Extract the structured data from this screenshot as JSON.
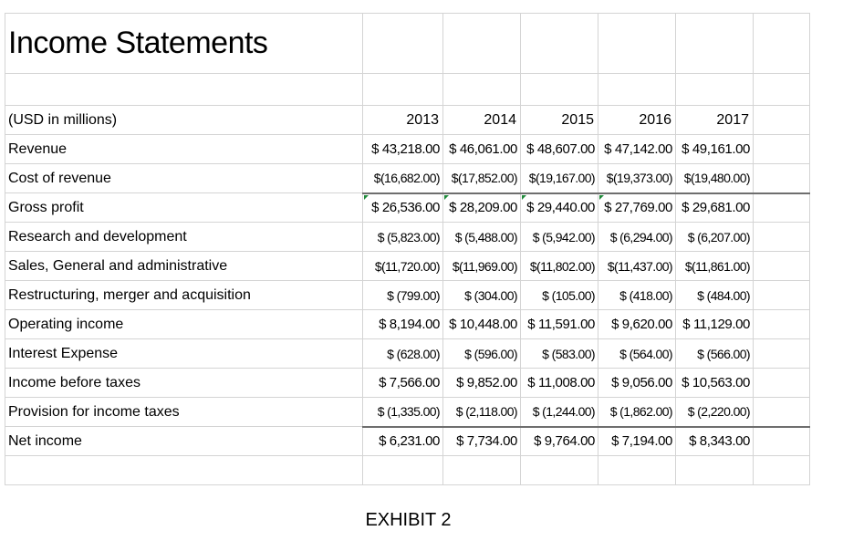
{
  "title": "Income Statements",
  "unit_label": "(USD in millions)",
  "years": [
    "2013",
    "2014",
    "2015",
    "2016",
    "2017"
  ],
  "rows": [
    {
      "label": "Revenue",
      "values": [
        "$ 43,218.00",
        "$ 46,061.00",
        "$ 48,607.00",
        "$ 47,142.00",
        "$ 49,161.00"
      ]
    },
    {
      "label": "Cost of revenue",
      "values": [
        "$(16,682.00)",
        "$(17,852.00)",
        "$(19,167.00)",
        "$(19,373.00)",
        "$(19,480.00)"
      ]
    },
    {
      "label": "Gross profit",
      "values": [
        "$ 26,536.00",
        "$ 28,209.00",
        "$ 29,440.00",
        "$ 27,769.00",
        "$ 29,681.00"
      ]
    },
    {
      "label": "Research and development",
      "values": [
        "$ (5,823.00)",
        "$ (5,488.00)",
        "$ (5,942.00)",
        "$ (6,294.00)",
        "$ (6,207.00)"
      ]
    },
    {
      "label": "Sales, General and administrative",
      "values": [
        "$(11,720.00)",
        "$(11,969.00)",
        "$(11,802.00)",
        "$(11,437.00)",
        "$(11,861.00)"
      ]
    },
    {
      "label": "Restructuring, merger and acquisition",
      "values": [
        "$ (799.00)",
        "$ (304.00)",
        "$ (105.00)",
        "$ (418.00)",
        "$ (484.00)"
      ]
    },
    {
      "label": "Operating income",
      "values": [
        "$ 8,194.00",
        "$ 10,448.00",
        "$ 11,591.00",
        "$ 9,620.00",
        "$ 11,129.00"
      ]
    },
    {
      "label": "Interest Expense",
      "values": [
        "$ (628.00)",
        "$ (596.00)",
        "$ (583.00)",
        "$ (564.00)",
        "$ (566.00)"
      ]
    },
    {
      "label": "Income before taxes",
      "values": [
        "$ 7,566.00",
        "$ 9,852.00",
        "$ 11,008.00",
        "$ 9,056.00",
        "$ 10,563.00"
      ]
    },
    {
      "label": "Provision for income taxes",
      "values": [
        "$ (1,335.00)",
        "$ (2,118.00)",
        "$ (1,244.00)",
        "$ (1,862.00)",
        "$ (2,220.00)"
      ]
    },
    {
      "label": "Net income",
      "values": [
        "$ 6,231.00",
        "$ 7,734.00",
        "$ 9,764.00",
        "$ 7,194.00",
        "$ 8,343.00"
      ]
    }
  ],
  "caption": "EXHIBIT 2",
  "colors": {
    "gridline": "#d4d4d4",
    "border": "#6e6e6e",
    "error_flag": "#1f8a3a"
  }
}
